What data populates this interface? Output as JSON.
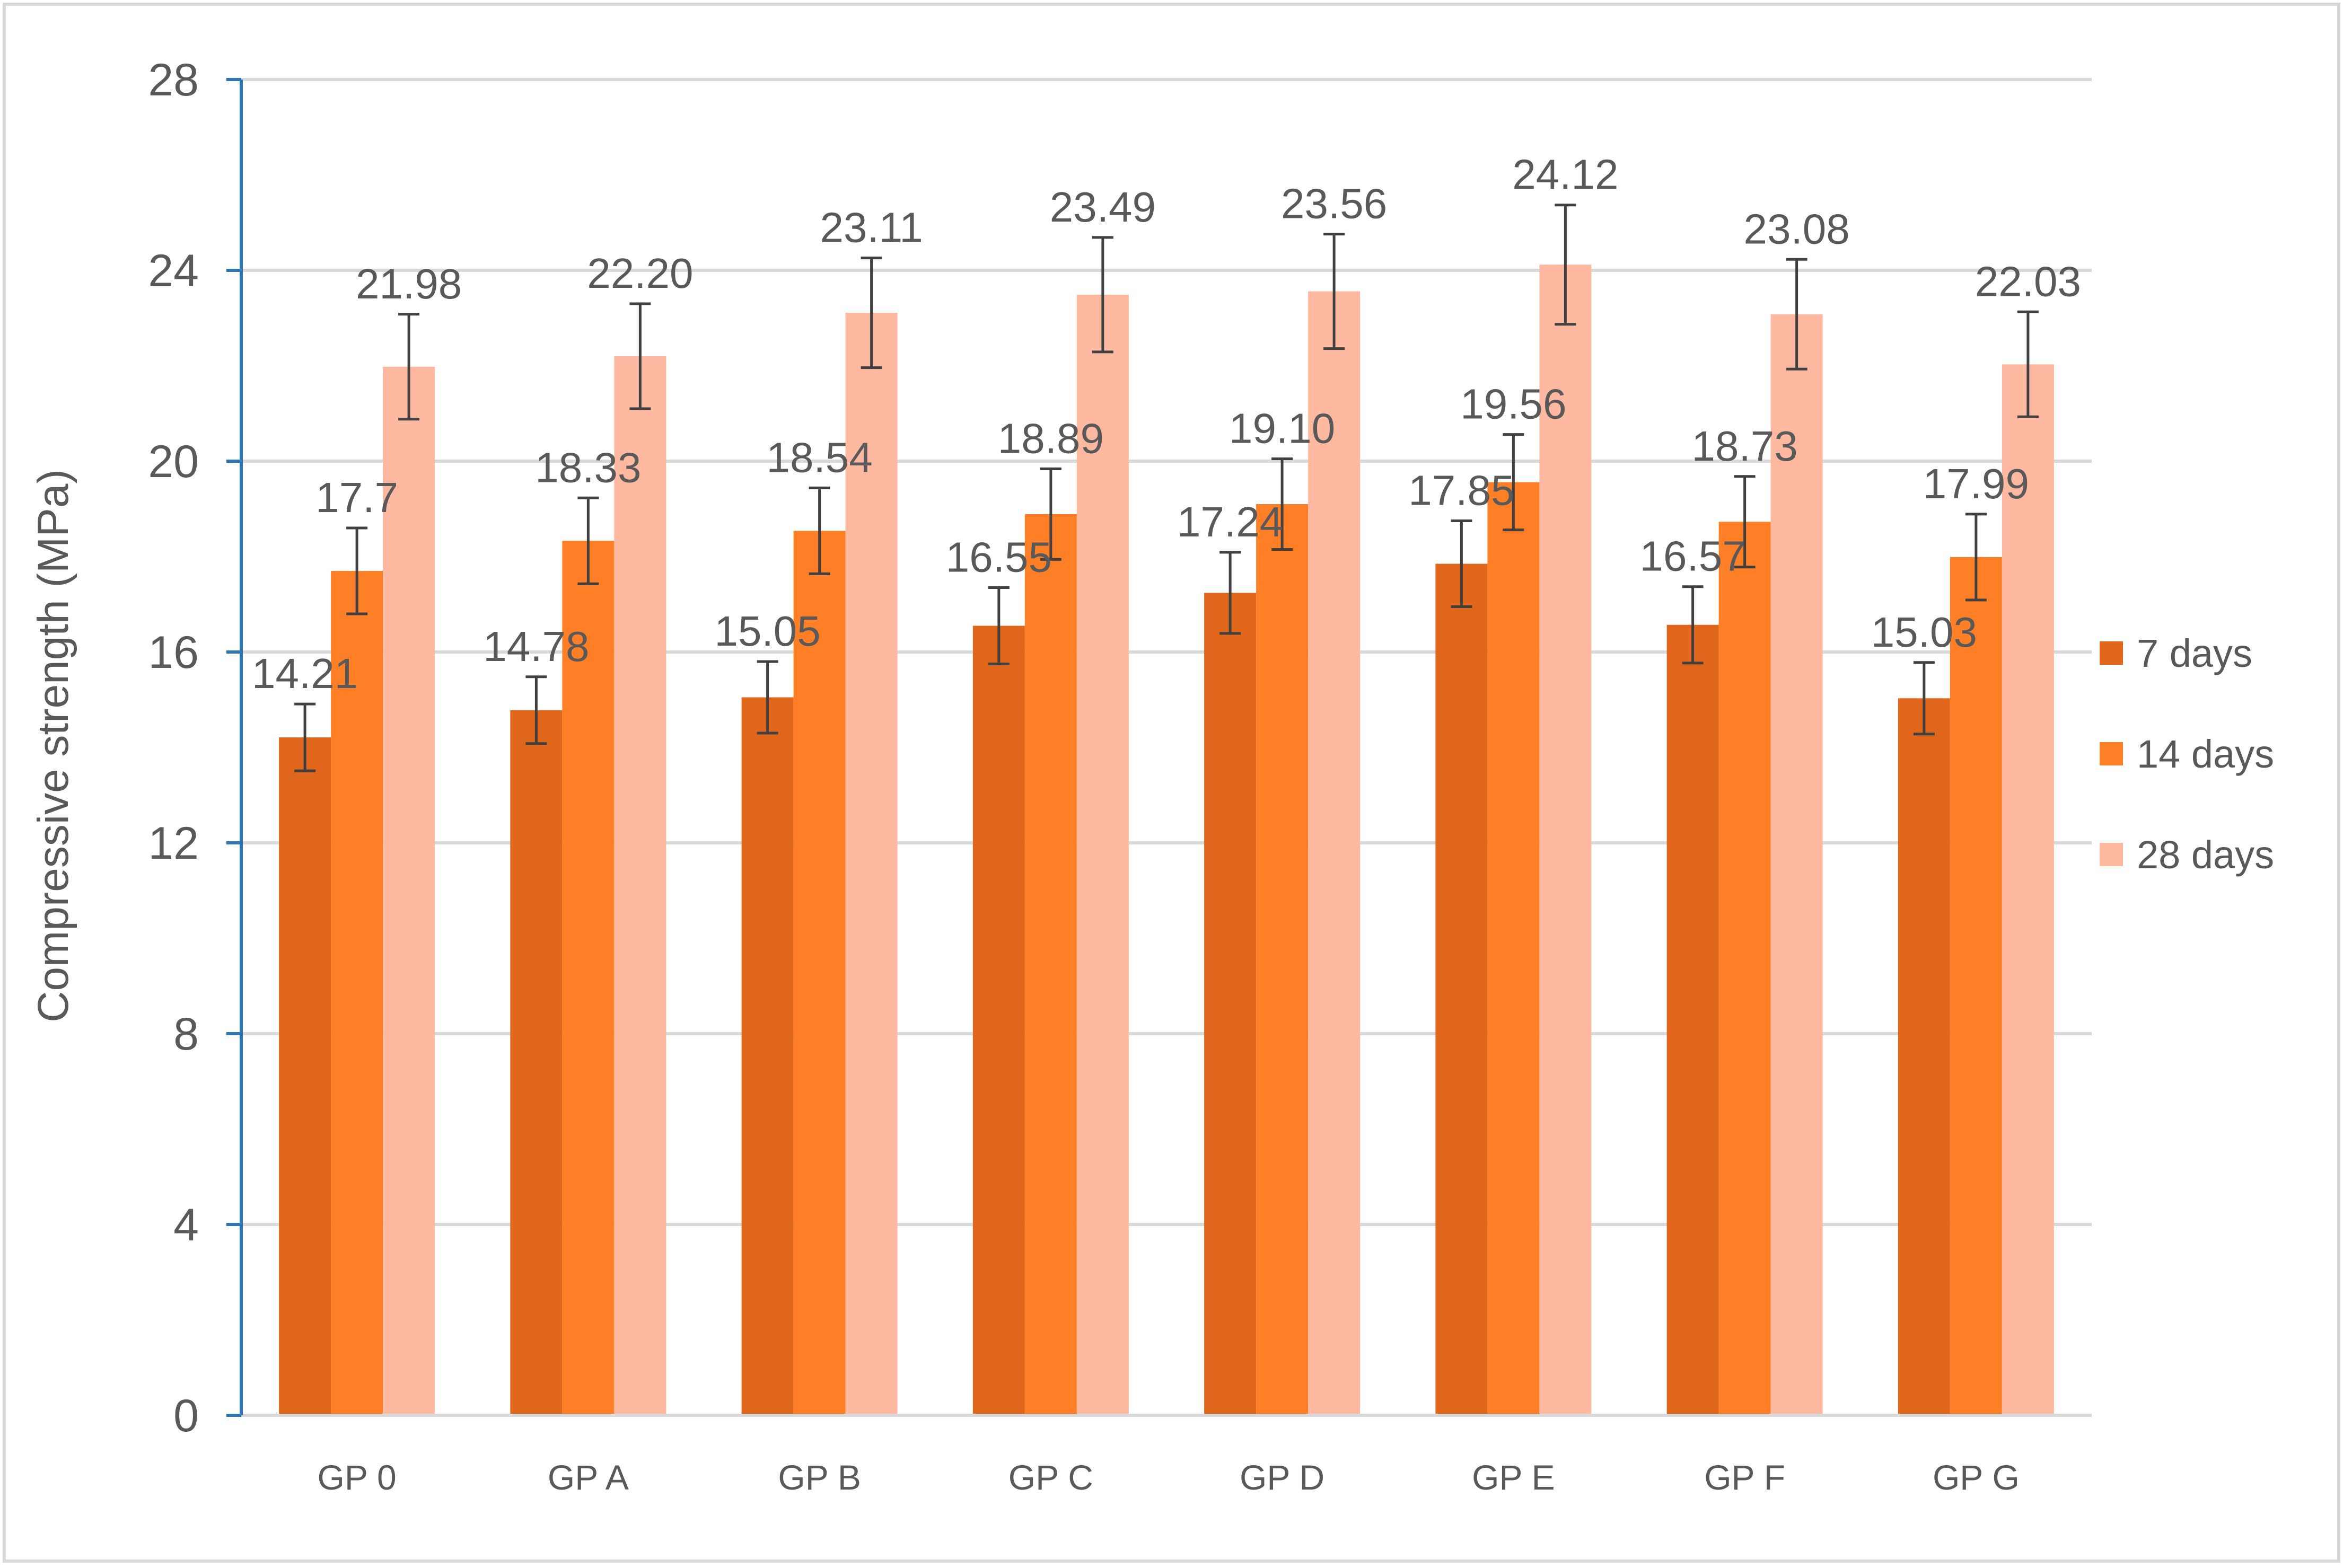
{
  "chart_data": {
    "type": "bar",
    "title": "",
    "xlabel": "",
    "ylabel": "Compressive strength (MPa)",
    "ylim": [
      0,
      28
    ],
    "yticks": [
      0,
      4,
      8,
      12,
      16,
      20,
      24,
      28
    ],
    "grid": true,
    "legend_position": "right",
    "error_bars": true,
    "categories": [
      "GP 0",
      "GP A",
      "GP B",
      "GP C",
      "GP D",
      "GP E",
      "GP F",
      "GP G"
    ],
    "series": [
      {
        "name": "7 days",
        "color": "#E0661C",
        "values": [
          14.21,
          14.78,
          15.05,
          16.55,
          17.24,
          17.85,
          16.57,
          15.03
        ],
        "labels": [
          "14.21",
          "14.78",
          "15.05",
          "16.55",
          "17.24",
          "17.85",
          "16.57",
          "15.03"
        ],
        "errors": [
          0.7,
          0.7,
          0.75,
          0.8,
          0.85,
          0.9,
          0.8,
          0.75
        ]
      },
      {
        "name": "14 days",
        "color": "#FF7F27",
        "values": [
          17.7,
          18.33,
          18.54,
          18.89,
          19.1,
          19.56,
          18.73,
          17.99
        ],
        "labels": [
          "17.7",
          "18.33",
          "18.54",
          "18.89",
          "19.10",
          "19.56",
          "18.73",
          "17.99"
        ],
        "errors": [
          0.9,
          0.9,
          0.9,
          0.95,
          0.95,
          1.0,
          0.95,
          0.9
        ]
      },
      {
        "name": "28 days",
        "color": "#FFB9A0",
        "values": [
          21.98,
          22.2,
          23.11,
          23.49,
          23.56,
          24.12,
          23.08,
          22.03
        ],
        "labels": [
          "21.98",
          "22.20",
          "23.11",
          "23.49",
          "23.56",
          "24.12",
          "23.08",
          "22.03"
        ],
        "errors": [
          1.1,
          1.1,
          1.15,
          1.2,
          1.2,
          1.25,
          1.15,
          1.1
        ]
      }
    ]
  },
  "colors": {
    "axis_line": "#2E75B6",
    "gridline": "#D9D9D9",
    "text": "#595959",
    "error_bar": "#404040",
    "frame": "#D9D9D9"
  }
}
